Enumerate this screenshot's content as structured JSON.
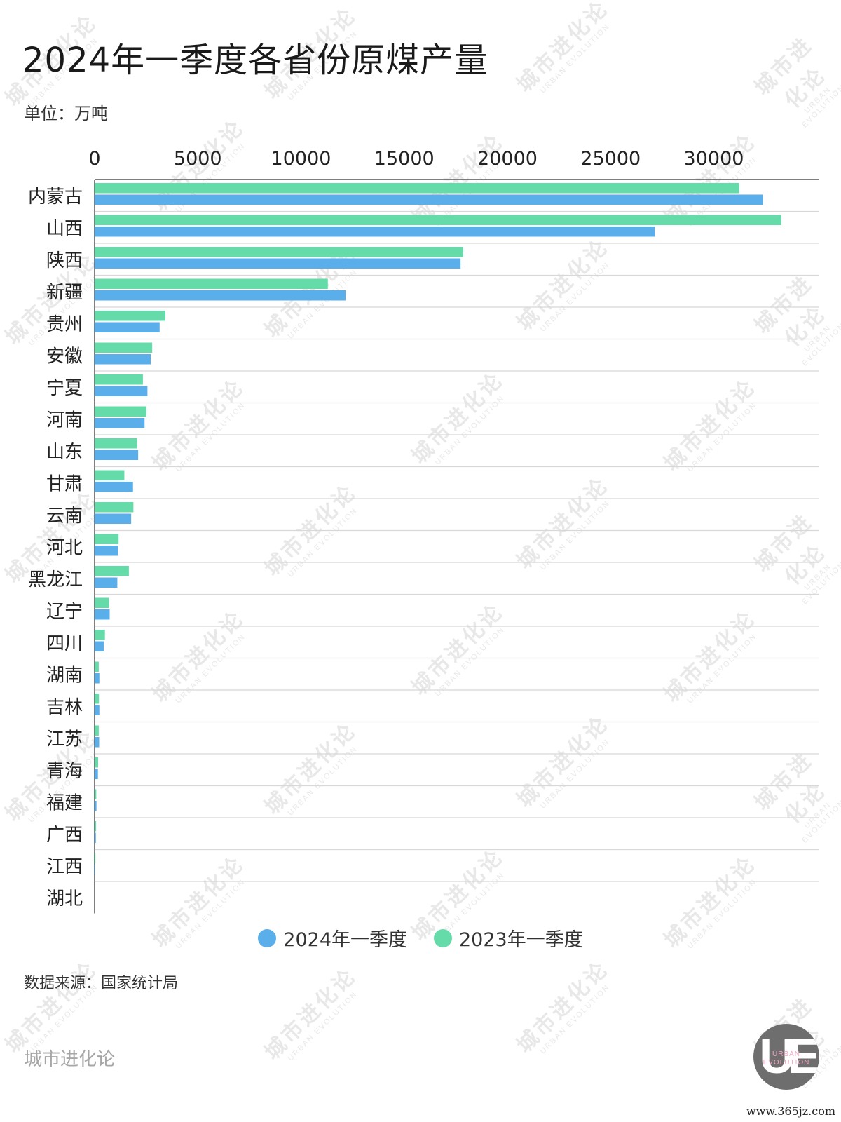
{
  "title": "2024年一季度各省份原煤产量",
  "unit_label": "单位：万吨",
  "source": "数据来源：国家统计局",
  "brand": "城市进化论",
  "watermark": {
    "cn": "城市进化论",
    "en": "URBAN EVOLUTION"
  },
  "logo": {
    "letters": "UE",
    "line1": "URBAN",
    "line2": "EVOLUTION"
  },
  "site": "www.365jz.com",
  "colors": {
    "series_2024": "#5aaeea",
    "series_2023": "#66dbaa",
    "axis": "#555555",
    "grid": "#d8d8d8"
  },
  "chart_data": {
    "type": "bar",
    "orientation": "horizontal",
    "xlim": [
      0,
      34000
    ],
    "x_ticks": [
      "0",
      "5000",
      "10000",
      "15000",
      "20000",
      "25000",
      "30000"
    ],
    "categories": [
      "内蒙古",
      "山西",
      "陕西",
      "新疆",
      "贵州",
      "安徽",
      "宁夏",
      "河南",
      "山东",
      "甘肃",
      "云南",
      "河北",
      "黑龙江",
      "辽宁",
      "四川",
      "湖南",
      "吉林",
      "江苏",
      "青海",
      "福建",
      "广西",
      "江西",
      "湖北"
    ],
    "series": [
      {
        "name": "2023年一季度",
        "color": "#66dbaa",
        "values": [
          31230,
          33270,
          17860,
          11300,
          3430,
          2790,
          2340,
          2510,
          2060,
          1440,
          1880,
          1160,
          1660,
          700,
          500,
          200,
          210,
          200,
          170,
          80,
          70,
          40,
          0
        ]
      },
      {
        "name": "2024年一季度",
        "color": "#5aaeea",
        "values": [
          32380,
          27140,
          17730,
          12160,
          3150,
          2720,
          2560,
          2420,
          2110,
          1860,
          1770,
          1130,
          1100,
          730,
          440,
          230,
          230,
          220,
          160,
          90,
          60,
          30,
          0
        ]
      }
    ],
    "legend": [
      {
        "name": "2024年一季度",
        "color": "#5aaeea"
      },
      {
        "name": "2023年一季度",
        "color": "#66dbaa"
      }
    ],
    "legend_position": "bottom"
  }
}
